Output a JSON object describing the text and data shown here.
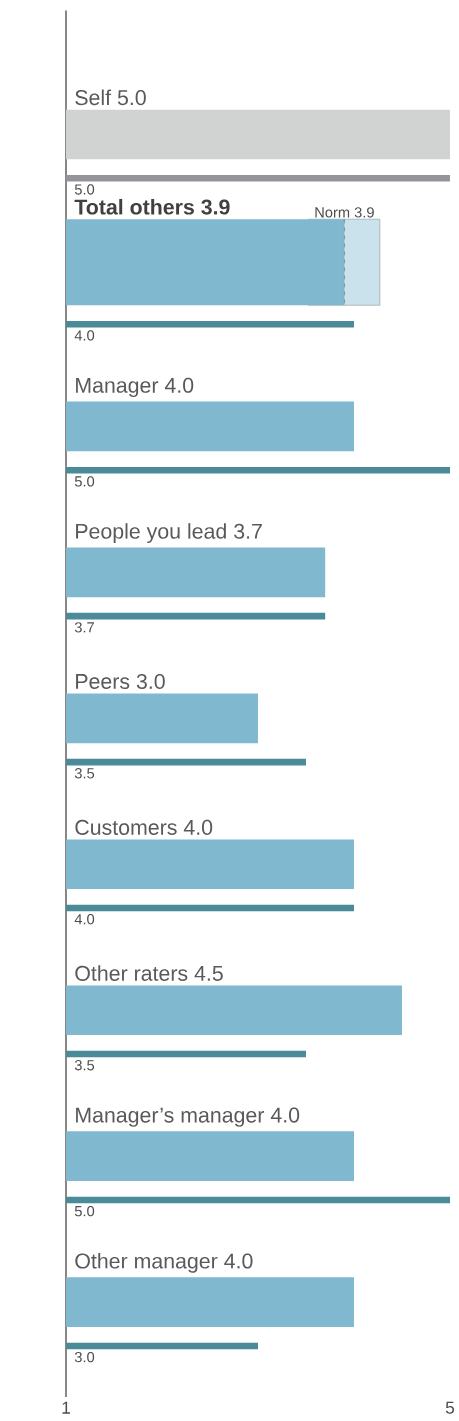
{
  "chart_data": {
    "type": "bar",
    "orientation": "horizontal",
    "categories": [
      "Self",
      "Total others",
      "Manager",
      "People you lead",
      "Peers",
      "Customers",
      "Other raters",
      "Manager’s manager",
      "Other manager"
    ],
    "series": [
      {
        "values": [
          5.0,
          3.9,
          4.0,
          3.7,
          3.0,
          4.0,
          4.5,
          4.0,
          4.0
        ],
        "colors": [
          "#d1d3d2",
          "#80b9cf",
          "#80b9cf",
          "#80b9cf",
          "#80b9cf",
          "#80b9cf",
          "#80b9cf",
          "#80b9cf",
          "#80b9cf"
        ],
        "value_labels": [
          "5.0",
          "3.9",
          "4.0",
          "3.7",
          "3.0",
          "4.0",
          "4.5",
          "4.0",
          "4.0"
        ]
      },
      {
        "values": [
          5.0,
          4.0,
          5.0,
          3.7,
          3.5,
          4.0,
          3.5,
          5.0,
          3.0
        ],
        "colors": [
          "#939598",
          "#4a8a99",
          "#4a8a99",
          "#4a8a99",
          "#4a8a99",
          "#4a8a99",
          "#4a8a99",
          "#4a8a99",
          "#4a8a99"
        ],
        "value_labels": [
          "5.0",
          "4.0",
          "5.0",
          "3.7",
          "3.5",
          "4.0",
          "3.5",
          "5.0",
          "3.0"
        ]
      }
    ],
    "xlim": [
      1,
      5
    ],
    "xticks": [
      1,
      5
    ],
    "tick_labels": "x",
    "bands": [
      {
        "axis": "x",
        "from": 3.52,
        "to": 4.27,
        "color": "#c9e2ec"
      }
    ],
    "ref_lines": [
      {
        "axis": "x",
        "value": 3.9,
        "label": "Norm 3.9",
        "line_style": "dashed",
        "color": "#8a9a9f"
      }
    ]
  }
}
